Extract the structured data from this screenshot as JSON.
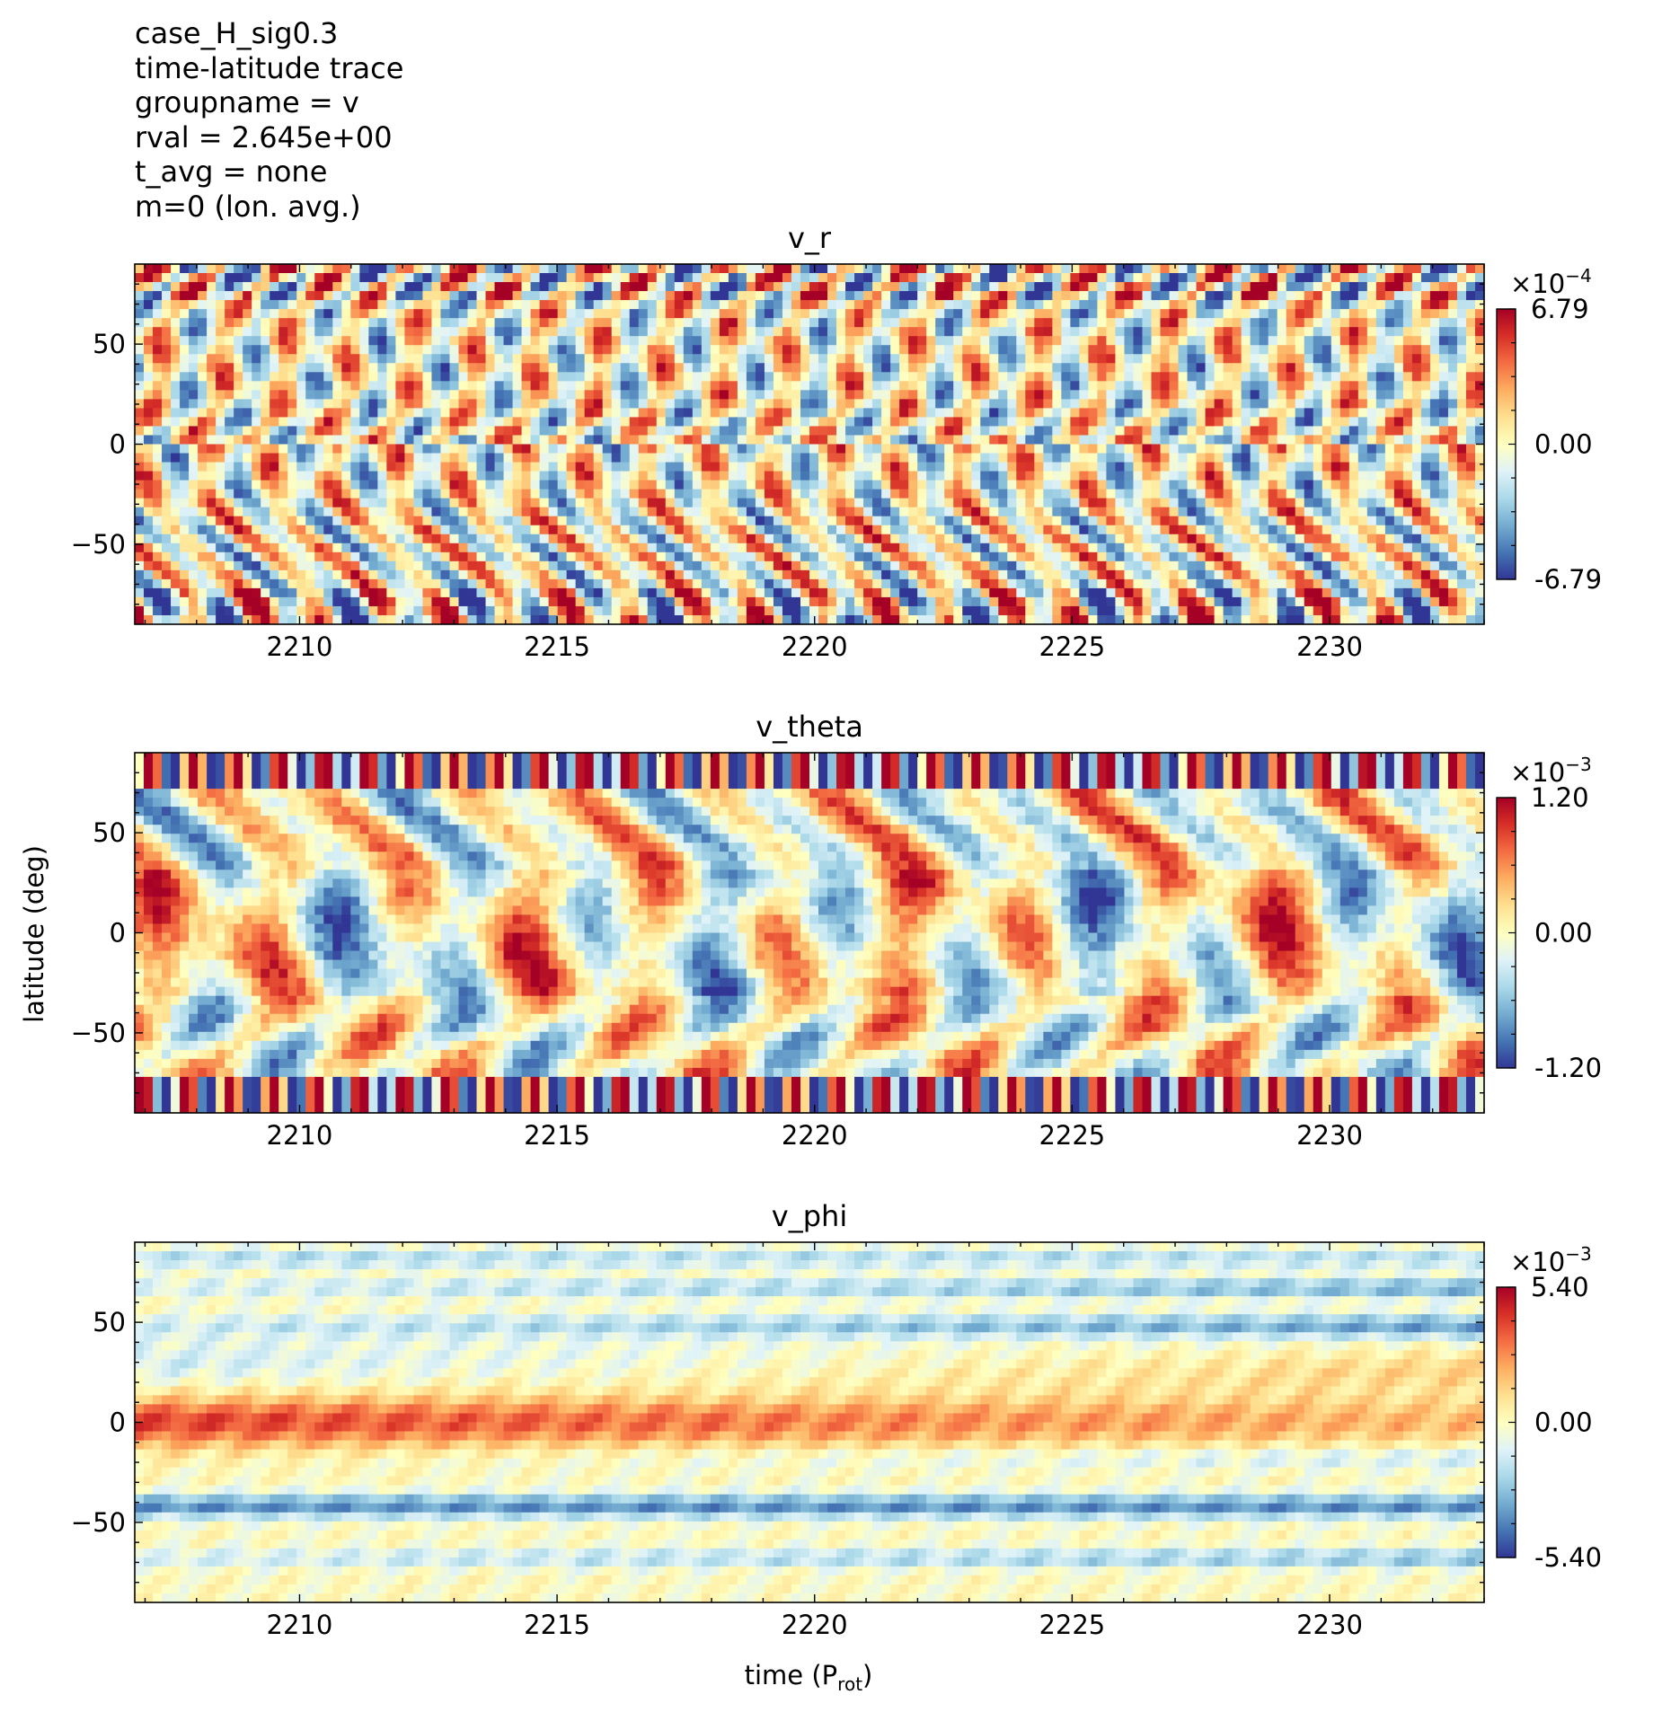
{
  "header": {
    "lines": [
      "case_H_sig0.3",
      "time-latitude trace",
      "groupname = v",
      "rval = 2.645e+00",
      "t_avg = none",
      "m=0 (lon. avg.)"
    ]
  },
  "axes": {
    "ylabel": "latitude (deg)",
    "xlabel_main": "time (P",
    "xlabel_sub": "rot",
    "xlabel_close": ")"
  },
  "colormap": {
    "name": "RdYlBu_r",
    "stops": [
      "#313695",
      "#4575b4",
      "#74add1",
      "#abd9e9",
      "#e0f3f8",
      "#ffffbf",
      "#fee090",
      "#fdae61",
      "#f46d43",
      "#d73027",
      "#a50026"
    ]
  },
  "chart_data": [
    {
      "type": "heatmap",
      "title": "v_r",
      "xlim": [
        2206.8,
        2233.0
      ],
      "ylim": [
        -90,
        90
      ],
      "xticks": [
        2210,
        2215,
        2220,
        2225,
        2230
      ],
      "yticks": [
        -50,
        0,
        50
      ],
      "colorbar": {
        "exponent": "-4",
        "max": "6.79",
        "mid": "0.00",
        "min": "-6.79",
        "range": [
          -6.79,
          6.79
        ]
      },
      "pattern": "small-scale diagonal streaks, strongest near poles"
    },
    {
      "type": "heatmap",
      "title": "v_theta",
      "xlim": [
        2206.8,
        2233.0
      ],
      "ylim": [
        -90,
        90
      ],
      "xticks": [
        2210,
        2215,
        2220,
        2225,
        2230
      ],
      "yticks": [
        -50,
        0,
        50
      ],
      "colorbar": {
        "exponent": "-3",
        "max": "1.20",
        "mid": "0.00",
        "min": "-1.20",
        "range": [
          -1.2,
          1.2
        ]
      },
      "pattern": "chevron-shaped patches with strong features near equator, polar stripes"
    },
    {
      "type": "heatmap",
      "title": "v_phi",
      "xlim": [
        2206.8,
        2233.0
      ],
      "ylim": [
        -90,
        90
      ],
      "xticks": [
        2210,
        2215,
        2220,
        2225,
        2230
      ],
      "yticks": [
        -50,
        0,
        50
      ],
      "colorbar": {
        "exponent": "-3",
        "max": "5.40",
        "mid": "0.00",
        "min": "-5.40",
        "range": [
          -5.4,
          5.4
        ]
      },
      "pattern": "zonal bands: positive near equator, negative near +/-45 and high latitudes"
    }
  ]
}
